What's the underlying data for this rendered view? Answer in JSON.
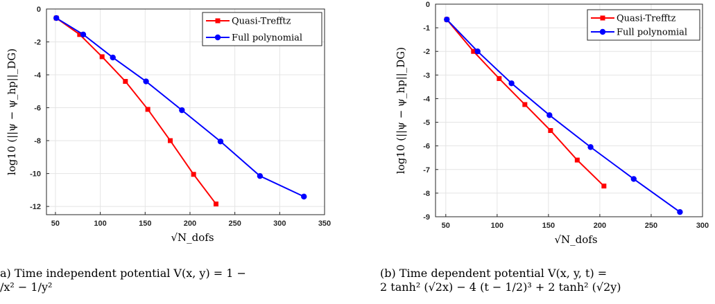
{
  "chart_data": [
    {
      "type": "line",
      "xlabel": "√N_dofs",
      "ylabel": "log10 (||ψ − ψ_hp||_DG)",
      "xlim": [
        40,
        350
      ],
      "ylim": [
        -12.5,
        0
      ],
      "xticks": [
        50,
        100,
        150,
        200,
        250,
        300,
        350
      ],
      "yticks": [
        0,
        -2,
        -4,
        -6,
        -8,
        -10,
        -12
      ],
      "grid": true,
      "legend_position": "top-right",
      "series": [
        {
          "name": "Quasi-Trefftz",
          "color": "#ff0000",
          "marker": "square",
          "x": [
            51,
            77,
            102,
            128,
            153,
            178,
            204,
            229
          ],
          "y": [
            -0.55,
            -1.55,
            -2.9,
            -4.4,
            -6.1,
            -8.0,
            -10.05,
            -11.85
          ]
        },
        {
          "name": "Full polynomial",
          "color": "#0000ff",
          "marker": "circle",
          "x": [
            51,
            81,
            114,
            151,
            191,
            234,
            278,
            327
          ],
          "y": [
            -0.55,
            -1.55,
            -2.95,
            -4.4,
            -6.15,
            -8.05,
            -10.15,
            -11.4
          ]
        }
      ],
      "caption": {
        "line1": "a)  Time independent potential V(x, y)  =  1 −",
        "line2": "/x² − 1/y²"
      }
    },
    {
      "type": "line",
      "xlabel": "√N_dofs",
      "ylabel": "log10 (||ψ − ψ_hp||_DG)",
      "xlim": [
        40,
        300
      ],
      "ylim": [
        -9,
        0
      ],
      "xticks": [
        50,
        100,
        150,
        200,
        250,
        300
      ],
      "yticks": [
        0,
        -1,
        -2,
        -3,
        -4,
        -5,
        -6,
        -7,
        -8,
        -9
      ],
      "grid": true,
      "legend_position": "top-right",
      "series": [
        {
          "name": "Quasi-Trefftz",
          "color": "#ff0000",
          "marker": "square",
          "x": [
            51,
            77,
            102,
            127,
            152,
            178,
            204
          ],
          "y": [
            -0.65,
            -2.0,
            -3.15,
            -4.25,
            -5.35,
            -6.6,
            -7.7
          ]
        },
        {
          "name": "Full polynomial",
          "color": "#0000ff",
          "marker": "circle",
          "x": [
            51,
            81,
            114,
            151,
            191,
            233,
            278
          ],
          "y": [
            -0.65,
            -2.0,
            -3.35,
            -4.7,
            -6.05,
            -7.4,
            -8.8
          ]
        }
      ],
      "caption": {
        "line1": "(b) Time dependent potential V(x, y, t) =",
        "line2": "2 tanh² (√2x) − 4 (t − 1/2)³ + 2 tanh² (√2y)"
      }
    }
  ]
}
